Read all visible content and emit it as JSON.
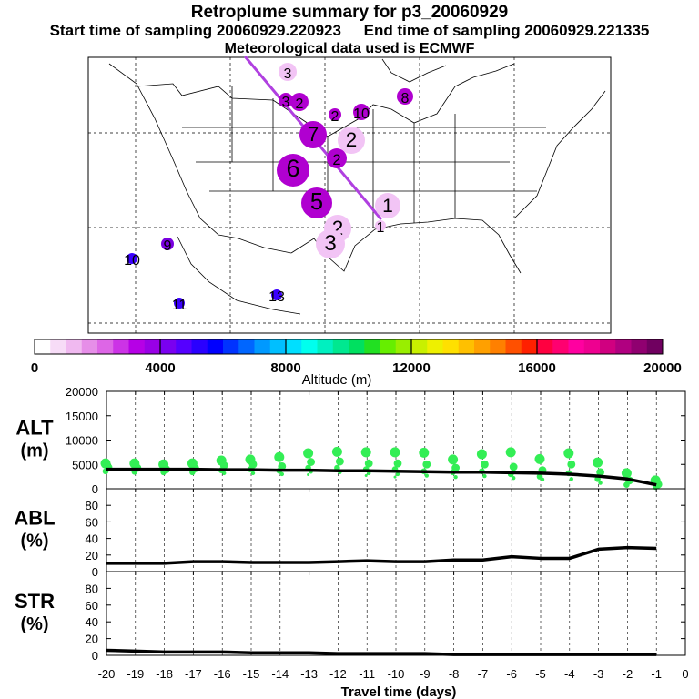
{
  "header": {
    "title": "Retroplume summary for p3_20060929",
    "start_label": "Start time of sampling 20060929.220923",
    "end_label": "End time of sampling 20060929.221335",
    "met_label": "Meteorological data used is ECMWF"
  },
  "colors": {
    "trajectory": "#b040e0",
    "points": "#33ee55",
    "mean_line": "#000000"
  },
  "map": {
    "markers": [
      {
        "label": "1",
        "color": "#f2c4f5"
      },
      {
        "label": "1",
        "color": "#f2c4f5"
      },
      {
        "label": "2",
        "color": "#f2c4f5"
      },
      {
        "label": "3",
        "color": "#f2c4f5"
      },
      {
        "label": "5",
        "color": "#b000d0"
      },
      {
        "label": "6",
        "color": "#b000d0"
      },
      {
        "label": "7",
        "color": "#b000d0"
      },
      {
        "label": "2",
        "color": "#f2c4f5"
      },
      {
        "label": "2",
        "color": "#b000d0"
      },
      {
        "label": "2",
        "color": "#b000d0"
      },
      {
        "label": "10",
        "color": "#b000d0"
      },
      {
        "label": "3",
        "color": "#b000d0"
      },
      {
        "label": "2",
        "color": "#b000d0"
      },
      {
        "label": "3",
        "color": "#f2c4f5"
      },
      {
        "label": "8",
        "color": "#b000d0"
      },
      {
        "label": "9",
        "color": "#7a00e0"
      },
      {
        "label": "10",
        "color": "#3b00ff"
      },
      {
        "label": "11",
        "color": "#3b00ff"
      },
      {
        "label": "13",
        "color": "#3b00ff"
      }
    ]
  },
  "colorbar": {
    "colors": [
      "#ffffff",
      "#f7dcf7",
      "#f0b9f0",
      "#e68ee8",
      "#dd66e6",
      "#cc33e6",
      "#b600e6",
      "#9900e6",
      "#7a00f0",
      "#5500ff",
      "#2a00ff",
      "#0000ff",
      "#0033ff",
      "#0066ff",
      "#0099ff",
      "#00bfff",
      "#00dfff",
      "#00ffee",
      "#00f0c0",
      "#00e890",
      "#00e060",
      "#22e022",
      "#66ee00",
      "#99ee00",
      "#c8f000",
      "#eef000",
      "#ffe000",
      "#ffc000",
      "#ffa000",
      "#ff8000",
      "#ff5000",
      "#ff2000",
      "#ff0040",
      "#ff0070",
      "#ff00a0",
      "#ee0090",
      "#d00080",
      "#b00080",
      "#900070",
      "#700060"
    ],
    "tick_labels": [
      "0",
      "4000",
      "8000",
      "12000",
      "16000",
      "20000"
    ],
    "label": "Altitude (m)"
  },
  "chart_data": [
    {
      "type": "line",
      "title": "",
      "ylabel": "ALT (m)",
      "xlabel": "Travel time (days)",
      "ylim": [
        0,
        20000
      ],
      "yticks": [
        0,
        5000,
        10000,
        15000,
        20000
      ],
      "x": [
        -20,
        -19,
        -18,
        -17,
        -16,
        -15,
        -14,
        -13,
        -12,
        -11,
        -10,
        -9,
        -8,
        -7,
        -6,
        -5,
        -4,
        -3,
        -2,
        -1
      ],
      "series": [
        {
          "name": "mean altitude",
          "values": [
            4000,
            4000,
            4000,
            4000,
            3900,
            3900,
            3800,
            3800,
            3700,
            3700,
            3600,
            3500,
            3400,
            3400,
            3300,
            3200,
            3000,
            2600,
            2000,
            800
          ]
        }
      ],
      "scatter": [
        {
          "x": -20,
          "values": [
            5200,
            4400,
            3600
          ]
        },
        {
          "x": -19,
          "values": [
            5200,
            4300,
            3500
          ]
        },
        {
          "x": -18,
          "values": [
            5000,
            4000,
            3400
          ]
        },
        {
          "x": -17,
          "values": [
            5200,
            4200,
            3400
          ]
        },
        {
          "x": -16,
          "values": [
            5800,
            4800,
            3800,
            3200
          ]
        },
        {
          "x": -15,
          "values": [
            6000,
            5000,
            4000,
            3200
          ]
        },
        {
          "x": -14,
          "values": [
            6500,
            4600,
            3700,
            3000
          ]
        },
        {
          "x": -13,
          "values": [
            7300,
            5500,
            4300,
            3500,
            2900
          ]
        },
        {
          "x": -12,
          "values": [
            7600,
            5600,
            4300,
            3400
          ]
        },
        {
          "x": -11,
          "values": [
            7500,
            5200,
            4000,
            3200,
            2700
          ]
        },
        {
          "x": -10,
          "values": [
            7500,
            5200,
            4000,
            3000,
            2400
          ]
        },
        {
          "x": -9,
          "values": [
            7400,
            5000,
            3600,
            2700
          ]
        },
        {
          "x": -8,
          "values": [
            6000,
            4300,
            3400,
            2400
          ]
        },
        {
          "x": -7,
          "values": [
            7100,
            5000,
            3600,
            2600
          ]
        },
        {
          "x": -6,
          "values": [
            7500,
            4500,
            3000,
            2200
          ]
        },
        {
          "x": -5,
          "values": [
            6100,
            3800,
            2500,
            1900
          ]
        },
        {
          "x": -4,
          "values": [
            7300,
            5000,
            3200,
            2000
          ]
        },
        {
          "x": -3,
          "values": [
            5400,
            3400,
            2000,
            1200
          ]
        },
        {
          "x": -2,
          "values": [
            3200,
            1700,
            800
          ]
        },
        {
          "x": -1,
          "values": [
            1700,
            900,
            400
          ]
        }
      ]
    },
    {
      "type": "line",
      "ylabel": "ABL (%)",
      "ylim": [
        0,
        100
      ],
      "yticks": [
        0,
        20,
        40,
        60,
        80
      ],
      "x": [
        -20,
        -19,
        -18,
        -17,
        -16,
        -15,
        -14,
        -13,
        -12,
        -11,
        -10,
        -9,
        -8,
        -7,
        -6,
        -5,
        -4,
        -3,
        -2,
        -1
      ],
      "series": [
        {
          "name": "ABL",
          "values": [
            10,
            10,
            10,
            12,
            12,
            11,
            11,
            11,
            12,
            13,
            12,
            12,
            14,
            14,
            18,
            16,
            16,
            27,
            29,
            28
          ]
        }
      ]
    },
    {
      "type": "line",
      "ylabel": "STR (%)",
      "xlabel": "Travel time (days)",
      "ylim": [
        0,
        100
      ],
      "yticks": [
        0,
        20,
        40,
        60,
        80
      ],
      "x": [
        -20,
        -19,
        -18,
        -17,
        -16,
        -15,
        -14,
        -13,
        -12,
        -11,
        -10,
        -9,
        -8,
        -7,
        -6,
        -5,
        -4,
        -3,
        -2,
        -1
      ],
      "xtick_labels": [
        "-20",
        "-19",
        "-18",
        "-17",
        "-16",
        "-15",
        "-14",
        "-13",
        "-12",
        "-11",
        "-10",
        "-9",
        "-8",
        "-7",
        "-6",
        "-5",
        "-4",
        "-3",
        "-2",
        "-1",
        "0"
      ],
      "series": [
        {
          "name": "STR",
          "values": [
            6,
            5,
            4,
            4,
            4,
            3,
            3,
            3,
            2,
            2,
            2,
            2,
            1,
            1,
            1,
            1,
            1,
            1,
            1,
            1
          ]
        }
      ]
    }
  ]
}
